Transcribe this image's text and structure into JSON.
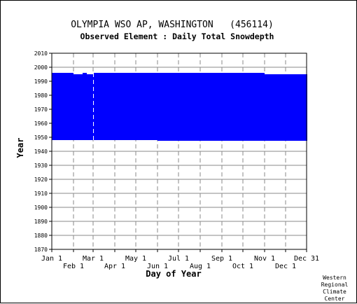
{
  "chart_data": {
    "type": "area",
    "title": "OLYMPIA WSO AP, WASHINGTON   (456114)",
    "subtitle": "Observed Element : Daily Total Snowdepth",
    "xlabel": "Day of Year",
    "ylabel": "Year",
    "ylim": [
      1870,
      2010
    ],
    "yticks": [
      2010,
      2000,
      1990,
      1980,
      1970,
      1960,
      1950,
      1940,
      1930,
      1920,
      1910,
      1900,
      1890,
      1880,
      1870
    ],
    "xlim": [
      1,
      365
    ],
    "xticks_top": [
      {
        "label": "Jan 1",
        "day": 1
      },
      {
        "label": "Mar 1",
        "day": 60
      },
      {
        "label": "May 1",
        "day": 121
      },
      {
        "label": "Jul 1",
        "day": 182
      },
      {
        "label": "Sep 1",
        "day": 244
      },
      {
        "label": "Nov 1",
        "day": 305
      },
      {
        "label": "Dec 31",
        "day": 365
      }
    ],
    "xticks_bottom": [
      {
        "label": "Feb 1",
        "day": 32
      },
      {
        "label": "Apr 1",
        "day": 91
      },
      {
        "label": "Jun 1",
        "day": 152
      },
      {
        "label": "Aug 1",
        "day": 213
      },
      {
        "label": "Oct 1",
        "day": 274
      },
      {
        "label": "Dec 1",
        "day": 335
      }
    ],
    "grid": true,
    "fill_color": "#0000ff",
    "data_blocks": [
      {
        "day_start": 1,
        "day_end": 32,
        "year_start": 1948.0,
        "year_end": 1996.0
      },
      {
        "day_start": 32,
        "day_end": 45,
        "year_start": 1948.0,
        "year_end": 1995.0
      },
      {
        "day_start": 45,
        "day_end": 51,
        "year_start": 1948.0,
        "year_end": 1996.0
      },
      {
        "day_start": 51,
        "day_end": 60,
        "year_start": 1948.0,
        "year_end": 1995.0
      },
      {
        "day_start": 60,
        "day_end": 61,
        "year_start": 1948.0,
        "year_end": 1996.0
      },
      {
        "day_start": 61,
        "day_end": 62,
        "year_start": 1948.0,
        "year_end": 1996.0
      },
      {
        "day_start": 62,
        "day_end": 152,
        "year_start": 1948.0,
        "year_end": 1996.0
      },
      {
        "day_start": 152,
        "day_end": 305,
        "year_start": 1947.5,
        "year_end": 1996.0
      },
      {
        "day_start": 305,
        "day_end": 366,
        "year_start": 1947.5,
        "year_end": 1995.0
      }
    ],
    "gap_day": 60.5
  },
  "credit": [
    "Western",
    "Regional",
    "Climate",
    "Center"
  ]
}
